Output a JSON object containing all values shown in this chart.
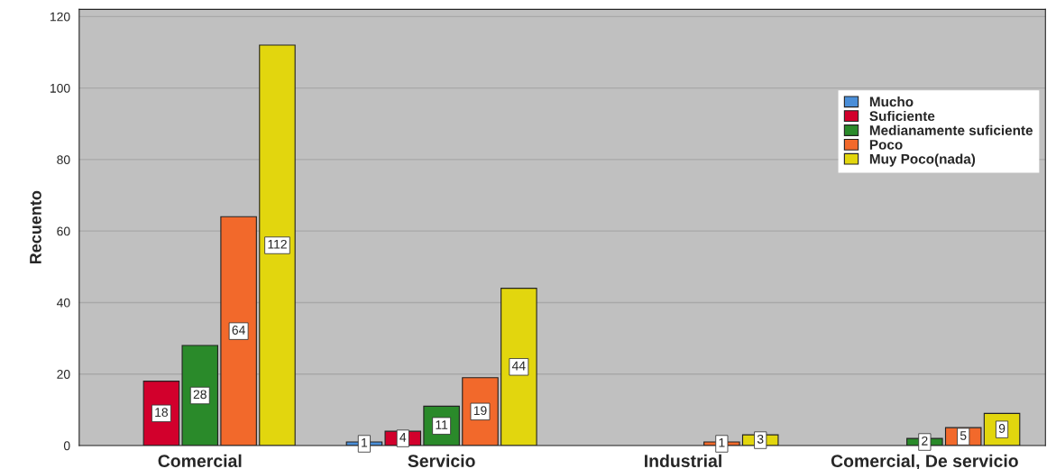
{
  "chart_data": {
    "type": "bar",
    "ylabel": "Recuento",
    "categories": [
      "Comercial",
      "Servicio",
      "Industrial",
      "Comercial, De servicio"
    ],
    "series": [
      {
        "name": "Mucho",
        "color": "#4a8ed8",
        "values": [
          null,
          1,
          null,
          null
        ]
      },
      {
        "name": "Suficiente",
        "color": "#d2002c",
        "values": [
          18,
          4,
          null,
          null
        ]
      },
      {
        "name": "Medianamente suficiente",
        "color": "#2a8a2a",
        "values": [
          28,
          11,
          null,
          2
        ]
      },
      {
        "name": "Poco",
        "color": "#f2692b",
        "values": [
          64,
          19,
          1,
          5
        ]
      },
      {
        "name": "Muy Poco(nada)",
        "color": "#e2d60e",
        "values": [
          112,
          44,
          3,
          9
        ]
      }
    ],
    "ylim": [
      0,
      122
    ],
    "yticks": [
      0,
      20,
      40,
      60,
      80,
      100,
      120
    ],
    "grid": "y",
    "legend": "right",
    "data_labels": true
  }
}
